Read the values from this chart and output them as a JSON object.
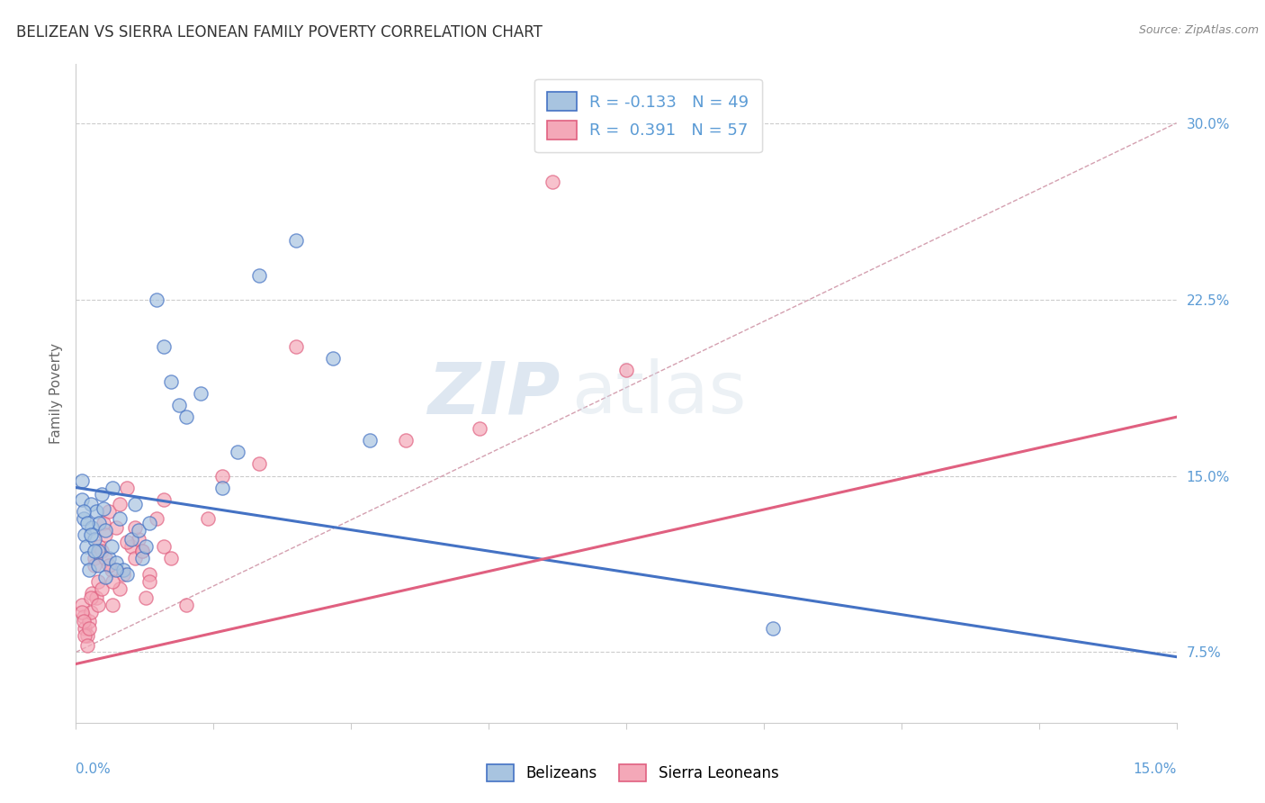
{
  "title": "BELIZEAN VS SIERRA LEONEAN FAMILY POVERTY CORRELATION CHART",
  "source": "Source: ZipAtlas.com",
  "ylabel": "Family Poverty",
  "yticks": [
    7.5,
    15.0,
    22.5,
    30.0
  ],
  "ytick_labels": [
    "7.5%",
    "15.0%",
    "22.5%",
    "30.0%"
  ],
  "xlim": [
    0.0,
    15.0
  ],
  "ylim": [
    4.5,
    32.5
  ],
  "belizean_R": -0.133,
  "belizean_N": 49,
  "sierra_R": 0.391,
  "sierra_N": 57,
  "belizean_color": "#a8c4e0",
  "sierra_color": "#f4a8b8",
  "belizean_line_color": "#4472c4",
  "sierra_line_color": "#e06080",
  "ref_line_color": "#d4a0b0",
  "legend_label_belizean": "Belizeans",
  "legend_label_sierra": "Sierra Leoneans",
  "watermark_zip": "ZIP",
  "watermark_atlas": "atlas",
  "belizean_trend_x": [
    0.0,
    15.0
  ],
  "belizean_trend_y": [
    14.5,
    7.3
  ],
  "sierra_trend_x": [
    0.0,
    15.0
  ],
  "sierra_trend_y": [
    7.0,
    17.5
  ],
  "ref_line_x": [
    0.0,
    15.0
  ],
  "ref_line_y": [
    7.5,
    30.0
  ],
  "belizean_x": [
    0.08,
    0.1,
    0.12,
    0.14,
    0.16,
    0.18,
    0.2,
    0.22,
    0.25,
    0.28,
    0.3,
    0.32,
    0.35,
    0.38,
    0.4,
    0.45,
    0.48,
    0.5,
    0.55,
    0.6,
    0.65,
    0.7,
    0.75,
    0.8,
    0.85,
    0.9,
    0.95,
    1.0,
    1.1,
    1.2,
    1.3,
    1.4,
    1.5,
    1.7,
    2.0,
    2.2,
    2.5,
    3.0,
    3.5,
    4.0,
    0.08,
    0.1,
    0.15,
    0.2,
    0.25,
    0.3,
    0.4,
    0.55,
    9.5
  ],
  "belizean_y": [
    14.0,
    13.2,
    12.5,
    12.0,
    11.5,
    11.0,
    13.8,
    12.8,
    12.3,
    13.5,
    11.8,
    13.0,
    14.2,
    13.6,
    12.7,
    11.5,
    12.0,
    14.5,
    11.3,
    13.2,
    11.0,
    10.8,
    12.3,
    13.8,
    12.7,
    11.5,
    12.0,
    13.0,
    22.5,
    20.5,
    19.0,
    18.0,
    17.5,
    18.5,
    14.5,
    16.0,
    23.5,
    25.0,
    20.0,
    16.5,
    14.8,
    13.5,
    13.0,
    12.5,
    11.8,
    11.2,
    10.7,
    11.0,
    8.5
  ],
  "sierra_x": [
    0.08,
    0.1,
    0.12,
    0.15,
    0.18,
    0.2,
    0.22,
    0.25,
    0.28,
    0.3,
    0.32,
    0.35,
    0.38,
    0.4,
    0.45,
    0.48,
    0.5,
    0.55,
    0.6,
    0.65,
    0.7,
    0.75,
    0.8,
    0.85,
    0.9,
    0.95,
    1.0,
    1.1,
    1.2,
    1.3,
    1.5,
    1.8,
    2.0,
    2.5,
    3.0,
    0.08,
    0.1,
    0.12,
    0.15,
    0.18,
    0.2,
    0.25,
    0.3,
    0.35,
    0.4,
    0.45,
    0.5,
    0.6,
    0.7,
    0.8,
    0.9,
    1.0,
    1.2,
    4.5,
    5.5,
    6.5,
    7.5
  ],
  "sierra_y": [
    9.5,
    9.0,
    8.5,
    8.2,
    8.8,
    9.2,
    10.0,
    11.5,
    9.8,
    10.5,
    12.0,
    11.8,
    13.0,
    12.5,
    13.5,
    11.0,
    9.5,
    12.8,
    10.2,
    10.8,
    14.5,
    12.0,
    11.5,
    12.3,
    11.8,
    9.8,
    10.8,
    13.2,
    12.0,
    11.5,
    9.5,
    13.2,
    15.0,
    15.5,
    20.5,
    9.2,
    8.8,
    8.2,
    7.8,
    8.5,
    9.8,
    11.2,
    9.5,
    10.2,
    11.5,
    11.2,
    10.5,
    13.8,
    12.2,
    12.8,
    11.8,
    10.5,
    14.0,
    16.5,
    17.0,
    27.5,
    19.5
  ]
}
